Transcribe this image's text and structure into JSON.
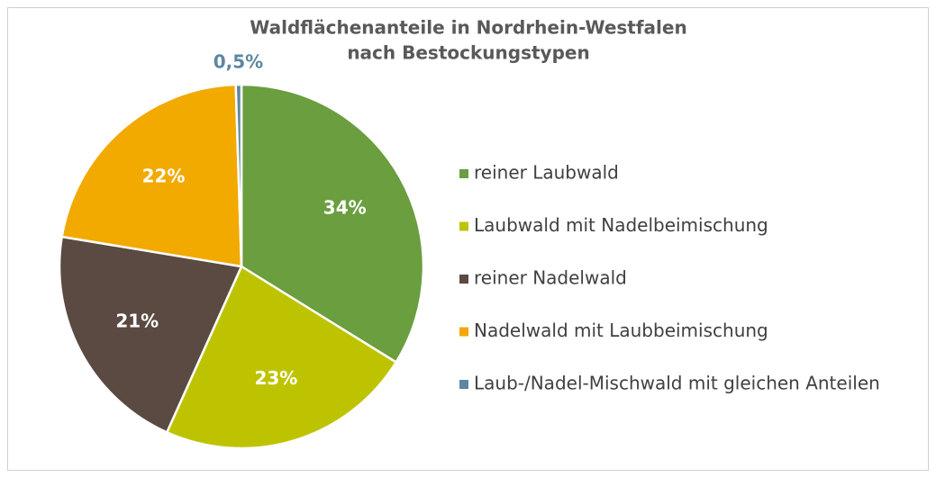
{
  "chart_data": {
    "type": "pie",
    "title": [
      "Waldflächenanteile in Nordrhein-Westfalen",
      "nach Bestockungstypen"
    ],
    "categories": [
      "reiner Laubwald",
      "Laubwald mit Nadelbeimischung",
      "reiner Nadelwald",
      "Nadelwald mit Laubbeimischung",
      "Laub-/Nadel-Mischwald mit gleichen Anteilen"
    ],
    "values": [
      34,
      23,
      21,
      22,
      0.5
    ],
    "value_labels": [
      "34%",
      "23%",
      "21%",
      "22%",
      "0,5%"
    ],
    "colors": [
      "#6a9e3f",
      "#bec300",
      "#5b4a41",
      "#f2a900",
      "#5d87a1"
    ],
    "legend": "right"
  }
}
